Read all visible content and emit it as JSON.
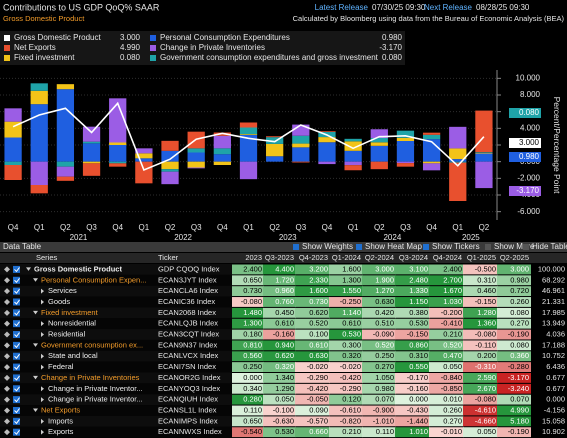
{
  "header": {
    "title": "Contributions to US GDP QoQ% SAAR",
    "subtitle": "Gross Domestic Product",
    "latest_label": "Latest Release",
    "latest": "07/30/25 09:30",
    "next_label": "Next Release",
    "next": "08/28/25 09:30",
    "source": "Calculated by Bloomberg using data from the Bureau of Economic Analysis (BEA)"
  },
  "chart_data": {
    "type": "bar",
    "stacked": true,
    "grid": true,
    "y_label": "Percent/Percentage Point",
    "categories": [
      "Q4",
      "Q1",
      "Q2",
      "Q3",
      "Q4",
      "Q1",
      "Q2",
      "Q3",
      "Q4",
      "Q1",
      "Q2",
      "Q3",
      "Q4",
      "Q1",
      "Q2",
      "Q3",
      "Q4",
      "Q1",
      "Q2"
    ],
    "years": [
      "2021",
      "2022",
      "2023",
      "2024",
      "2025"
    ],
    "ylim": [
      -7,
      11
    ],
    "yticks": [
      {
        "value": 10,
        "label": "10.000"
      },
      {
        "value": 8,
        "label": "8.000"
      },
      {
        "value": 6,
        "label": "6.000"
      },
      {
        "value": 4,
        "label": "4.000"
      },
      {
        "value": 2,
        "label": "2.000"
      },
      {
        "value": 0,
        "label": "0.000"
      },
      {
        "value": -2,
        "label": "-2.000"
      },
      {
        "value": -4,
        "label": "-4.000"
      },
      {
        "value": -6,
        "label": "-6.000"
      }
    ],
    "series": [
      {
        "name": "Gross Domestic Product",
        "type": "line",
        "color": "#ffffff",
        "values": [
          4.2,
          5.6,
          6.4,
          3.5,
          7.0,
          -1.0,
          0.3,
          2.7,
          3.4,
          2.8,
          2.4,
          4.4,
          3.2,
          1.6,
          3.0,
          3.1,
          2.4,
          -0.5,
          3.0
        ]
      },
      {
        "name": "Net Exports",
        "color": "#e8502e",
        "values": [
          -1.8,
          -1.0,
          -0.5,
          -1.5,
          -0.4,
          -2.6,
          1.2,
          2.0,
          0.4,
          0.6,
          0.11,
          -0.1,
          0.09,
          -0.61,
          -0.9,
          -0.43,
          0.26,
          -4.61,
          4.99
        ]
      },
      {
        "name": "Fixed investment",
        "color": "#f2c318",
        "values": [
          1.9,
          1.6,
          0.6,
          -0.2,
          0.3,
          0.6,
          -0.9,
          -0.7,
          -0.4,
          0.1,
          1.48,
          0.45,
          0.62,
          1.14,
          0.42,
          0.38,
          -0.2,
          1.28,
          0.08
        ]
      },
      {
        "name": "Personal Consumption Expenditures",
        "color": "#1f5fe0",
        "values": [
          2.9,
          6.9,
          8.7,
          2.2,
          2.0,
          0.4,
          1.3,
          1.1,
          0.9,
          3.2,
          0.65,
          1.72,
          2.33,
          1.3,
          1.9,
          2.48,
          2.7,
          0.31,
          0.98
        ]
      },
      {
        "name": "Change in Private Inventories",
        "color": "#9b5de5",
        "values": [
          1.6,
          -2.8,
          -1.2,
          1.8,
          5.3,
          0.6,
          -1.5,
          -0.1,
          1.5,
          -2.1,
          0.0,
          1.34,
          -0.29,
          -0.42,
          1.05,
          -0.17,
          -0.84,
          2.59,
          -3.17
        ]
      },
      {
        "name": "Government consumption expenditures and gross investment",
        "color": "#1fa3a8",
        "values": [
          -0.4,
          0.9,
          -0.6,
          0.2,
          -0.2,
          0.0,
          -0.3,
          0.5,
          0.7,
          0.8,
          0.81,
          0.94,
          0.61,
          0.3,
          0.52,
          0.86,
          0.52,
          -0.11,
          0.08
        ]
      }
    ],
    "legend_values": [
      "3.000",
      "4.990",
      "0.080",
      "0.980",
      "-3.170",
      "0.080"
    ]
  },
  "table": {
    "title": "Data Table",
    "toolbar": [
      "Show Weights",
      "Show Heat Map",
      "Show Tickers",
      "Show More",
      "Hide Table"
    ],
    "series_header": "Series",
    "ticker_header": "Ticker",
    "columns": [
      "2023",
      "Q3-2023",
      "Q4-2023",
      "Q1-2024",
      "Q2-2024",
      "Q3-2024",
      "Q4-2024",
      "Q1-2025",
      "Q2-2025"
    ],
    "rows": [
      {
        "series": "Gross Domestic Product",
        "level": 0,
        "ticker": "GDP CQOQ Index",
        "values": [
          "2.400",
          "4.400",
          "3.200",
          "1.600",
          "3.000",
          "3.100",
          "2.400",
          "-0.500",
          "3.000"
        ],
        "weight": "100.000"
      },
      {
        "series": "Personal Consumption Expen...",
        "level": 1,
        "ticker": "ECAN3JYT Index",
        "values": [
          "0.650",
          "1.720",
          "2.330",
          "1.300",
          "1.900",
          "2.480",
          "2.700",
          "0.310",
          "0.980"
        ],
        "weight": "68.292"
      },
      {
        "series": "Services",
        "level": 2,
        "ticker": "ECANCLA6 Index",
        "values": [
          "0.730",
          "0.960",
          "1.600",
          "1.550",
          "1.270",
          "1.330",
          "1.670",
          "0.460",
          "0.720"
        ],
        "weight": "46.961"
      },
      {
        "series": "Goods",
        "level": 2,
        "ticker": "ECANIC36 Index",
        "values": [
          "-0.080",
          "0.760",
          "0.730",
          "-0.250",
          "0.630",
          "1.150",
          "1.030",
          "-0.150",
          "0.260"
        ],
        "weight": "21.331"
      },
      {
        "series": "Fixed investment",
        "level": 1,
        "ticker": "ECAN2068 Index",
        "values": [
          "1.480",
          "0.450",
          "0.620",
          "1.140",
          "0.420",
          "0.380",
          "-0.200",
          "1.280",
          "0.080"
        ],
        "weight": "17.985"
      },
      {
        "series": "Nonresidential",
        "level": 2,
        "ticker": "ECANLQJB Index",
        "values": [
          "1.300",
          "0.610",
          "0.520",
          "0.610",
          "0.510",
          "0.530",
          "-0.410",
          "1.360",
          "0.270"
        ],
        "weight": "13.949"
      },
      {
        "series": "Residential",
        "level": 2,
        "ticker": "ECAN3CQT Index",
        "values": [
          "0.180",
          "-0.160",
          "0.100",
          "0.530",
          "-0.090",
          "-0.150",
          "0.210",
          "-0.080",
          "-0.190"
        ],
        "weight": "4.036"
      },
      {
        "series": "Government consumption ex...",
        "level": 1,
        "ticker": "ECAN9N37 Index",
        "values": [
          "0.810",
          "0.940",
          "0.610",
          "0.300",
          "0.520",
          "0.860",
          "0.520",
          "-0.110",
          "0.080"
        ],
        "weight": "17.188"
      },
      {
        "series": "State and local",
        "level": 2,
        "ticker": "ECANLVCX Index",
        "values": [
          "0.560",
          "0.620",
          "0.630",
          "0.320",
          "0.250",
          "0.310",
          "0.470",
          "0.200",
          "0.360"
        ],
        "weight": "10.752"
      },
      {
        "series": "Federal",
        "level": 2,
        "ticker": "ECANI7SN Index",
        "values": [
          "0.250",
          "0.320",
          "-0.020",
          "-0.020",
          "0.270",
          "0.550",
          "0.050",
          "-0.310",
          "-0.280"
        ],
        "weight": "6.436"
      },
      {
        "series": "Change in Private Inventories",
        "level": 1,
        "ticker": "ECANOR2G Index",
        "values": [
          "0.000",
          "1.340",
          "-0.290",
          "-0.420",
          "1.050",
          "-0.170",
          "-0.840",
          "2.590",
          "-3.170"
        ],
        "weight": "0.677"
      },
      {
        "series": "Change in Private Inventor...",
        "level": 2,
        "ticker": "ECANYOQ3 Index",
        "values": [
          "0.340",
          "1.290",
          "-0.420",
          "-0.290",
          "0.980",
          "-0.160",
          "-0.850",
          "2.670",
          "-3.240"
        ],
        "weight": "0.677"
      },
      {
        "series": "Change in Private Inventor...",
        "level": 2,
        "ticker": "ECANQIUH Index",
        "values": [
          "0.280",
          "0.050",
          "-0.050",
          "0.120",
          "0.070",
          "0.000",
          "0.010",
          "-0.080",
          "0.070"
        ],
        "weight": "0.000"
      },
      {
        "series": "Net Exports",
        "level": 1,
        "ticker": "ECANSL1L Index",
        "values": [
          "0.110",
          "-0.100",
          "0.090",
          "-0.610",
          "-0.900",
          "-0.430",
          "0.260",
          "-4.610",
          "4.990"
        ],
        "weight": "-4.156"
      },
      {
        "series": "Imports",
        "level": 2,
        "ticker": "ECANIMPS Index",
        "values": [
          "0.650",
          "-0.630",
          "-0.570",
          "-0.820",
          "-1.010",
          "-1.440",
          "0.270",
          "-4.660",
          "5.180"
        ],
        "weight": "15.058"
      },
      {
        "series": "Exports",
        "level": 2,
        "ticker": "ECANNWXS Index",
        "values": [
          "-0.540",
          "0.530",
          "0.660",
          "0.210",
          "0.110",
          "1.010",
          "-0.010",
          "0.050",
          "-0.190"
        ],
        "weight": "10.902"
      }
    ]
  }
}
